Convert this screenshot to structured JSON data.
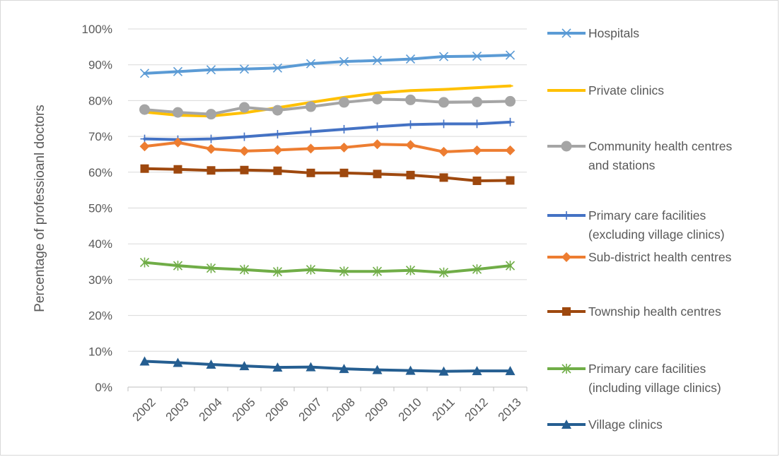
{
  "chart_data": {
    "type": "line",
    "title": "",
    "xlabel": "",
    "ylabel": "Percentage of professioanl doctors",
    "ylim": [
      0,
      100
    ],
    "y_ticks": [
      "0%",
      "10%",
      "20%",
      "30%",
      "40%",
      "50%",
      "60%",
      "70%",
      "80%",
      "90%",
      "100%"
    ],
    "categories": [
      "2002",
      "2003",
      "2004",
      "2005",
      "2006",
      "2007",
      "2008",
      "2009",
      "2010",
      "2011",
      "2012",
      "2013"
    ],
    "grid": true,
    "legend_position": "right",
    "series": [
      {
        "name": "Hospitals",
        "color": "#5b9bd5",
        "marker": "x",
        "values": [
          87.6,
          88.1,
          88.6,
          88.8,
          89.1,
          90.3,
          90.9,
          91.2,
          91.6,
          92.3,
          92.4,
          92.7
        ]
      },
      {
        "name": "Private clinics",
        "color": "#ffc000",
        "marker": "dash",
        "values": [
          76.8,
          75.9,
          75.7,
          76.6,
          78.0,
          79.5,
          80.9,
          82.1,
          82.8,
          83.1,
          83.6,
          84.1
        ]
      },
      {
        "name": "Community health centres and stations",
        "color": "#a5a5a5",
        "marker": "circle",
        "values": [
          77.5,
          76.7,
          76.2,
          78.1,
          77.3,
          78.3,
          79.5,
          80.4,
          80.2,
          79.5,
          79.6,
          79.8
        ]
      },
      {
        "name": "Primary care facilities (excluding village clinics)",
        "color": "#4472c4",
        "marker": "plus",
        "values": [
          69.3,
          69.1,
          69.3,
          69.9,
          70.6,
          71.3,
          72.0,
          72.7,
          73.3,
          73.5,
          73.5,
          74.0
        ]
      },
      {
        "name": "Sub-district health centres",
        "color": "#ed7d31",
        "marker": "diamond",
        "values": [
          67.2,
          68.3,
          66.5,
          65.9,
          66.2,
          66.6,
          66.9,
          67.8,
          67.6,
          65.7,
          66.1,
          66.1
        ]
      },
      {
        "name": "Township health centres",
        "color": "#9e480e",
        "marker": "square",
        "values": [
          61.0,
          60.8,
          60.5,
          60.6,
          60.4,
          59.8,
          59.8,
          59.5,
          59.2,
          58.5,
          57.6,
          57.7
        ]
      },
      {
        "name": "Primary care facilities (including village clinics)",
        "color": "#70ad47",
        "marker": "star",
        "values": [
          34.8,
          33.9,
          33.2,
          32.8,
          32.2,
          32.8,
          32.3,
          32.3,
          32.6,
          32.0,
          32.9,
          33.9
        ]
      },
      {
        "name": "Village clinics",
        "color": "#255e91",
        "marker": "triangle",
        "values": [
          7.2,
          6.8,
          6.3,
          5.9,
          5.5,
          5.6,
          5.1,
          4.8,
          4.6,
          4.4,
          4.5,
          4.5
        ]
      }
    ],
    "legend_labels": [
      [
        "Hospitals"
      ],
      [
        "Private clinics"
      ],
      [
        "Community health centres",
        "and stations"
      ],
      [
        "Primary care facilities",
        "(excluding village clinics)"
      ],
      [
        "Sub-district health centres"
      ],
      [
        "Township health centres"
      ],
      [
        "Primary care facilities",
        "(including village clinics)"
      ],
      [
        "Village clinics"
      ]
    ]
  }
}
